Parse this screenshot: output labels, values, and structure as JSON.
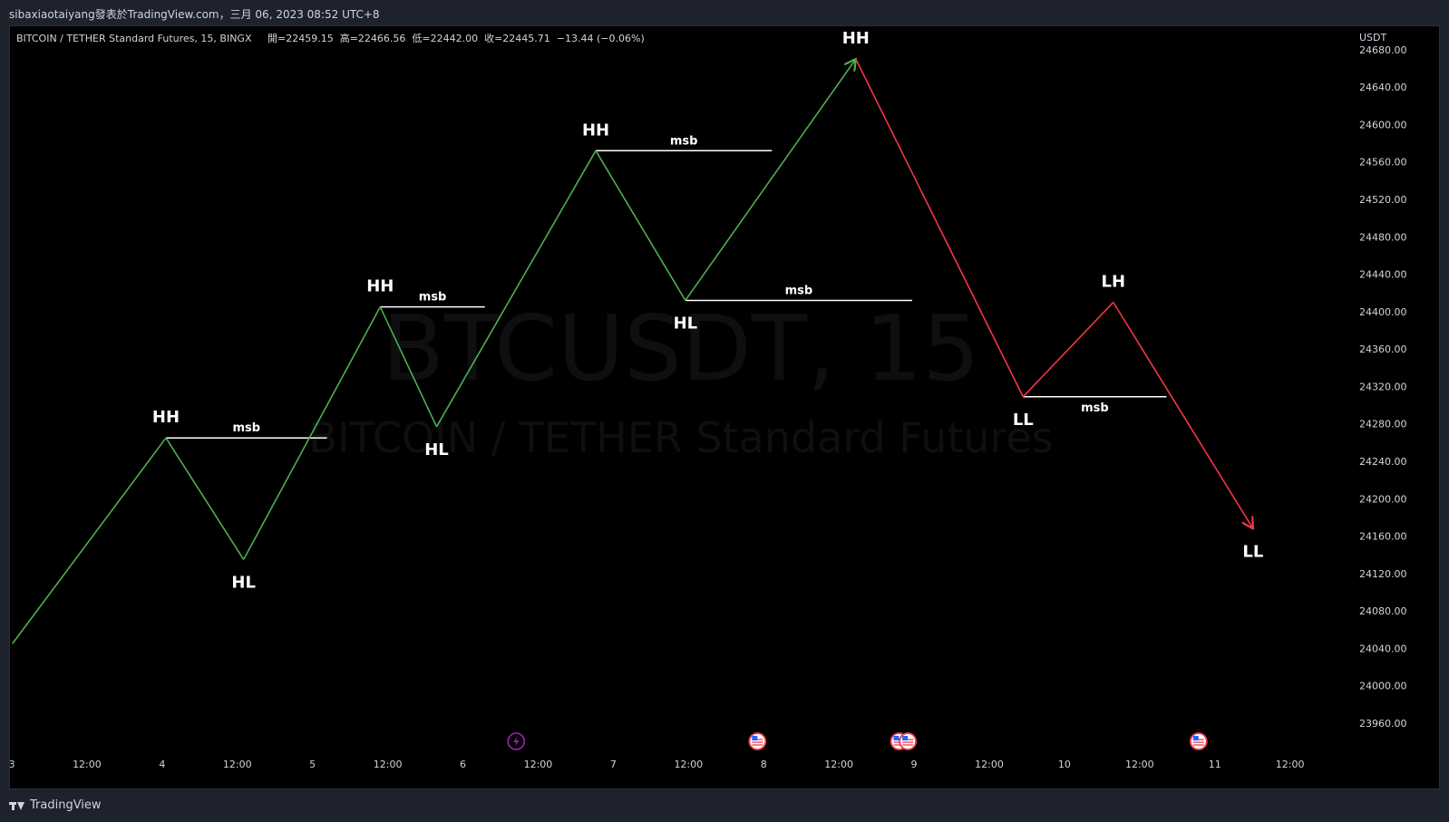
{
  "publisher_line": "sibaxiaotaiyang發表於TradingView.com，三月 06, 2023 08:52 UTC+8",
  "legend": {
    "symbol": "BITCOIN / TETHER Standard Futures, 15, BINGX",
    "ohlc": "開=22459.15  高=22466.56  低=22442.00  收=22445.71  −13.44 (−0.06%)"
  },
  "watermark": {
    "main": "BTCUSDT, 15",
    "sub": "BITCOIN / TETHER Standard Futures"
  },
  "footer": {
    "brand": "TradingView"
  },
  "colors": {
    "bull": "#4caf50",
    "bear": "#f23645",
    "msb_line": "#ffffff",
    "background": "#000000"
  },
  "chart_data": {
    "type": "line",
    "currency": "USDT",
    "ylim": [
      23930,
      24705
    ],
    "yticks": [
      23960,
      24000,
      24040,
      24080,
      24120,
      24160,
      24200,
      24240,
      24280,
      24320,
      24360,
      24400,
      24440,
      24480,
      24520,
      24560,
      24600,
      24640,
      24680
    ],
    "xticks": [
      {
        "label": "3",
        "t": 0
      },
      {
        "label": "12:00",
        "t": 12
      },
      {
        "label": "4",
        "t": 24
      },
      {
        "label": "12:00",
        "t": 36
      },
      {
        "label": "5",
        "t": 48
      },
      {
        "label": "12:00",
        "t": 60
      },
      {
        "label": "6",
        "t": 72
      },
      {
        "label": "12:00",
        "t": 84
      },
      {
        "label": "7",
        "t": 96
      },
      {
        "label": "12:00",
        "t": 108
      },
      {
        "label": "8",
        "t": 120
      },
      {
        "label": "12:00",
        "t": 132
      },
      {
        "label": "9",
        "t": 144
      },
      {
        "label": "12:00",
        "t": 156
      },
      {
        "label": "10",
        "t": 168
      },
      {
        "label": "12:00",
        "t": 180
      },
      {
        "label": "11",
        "t": 192
      },
      {
        "label": "12:00",
        "t": 204
      }
    ],
    "xlim": [
      0,
      213.6
    ],
    "swing_points": [
      {
        "t": 0.1,
        "price": 24045,
        "label": ""
      },
      {
        "t": 24.6,
        "price": 24265,
        "label": "HH"
      },
      {
        "t": 37.0,
        "price": 24135,
        "label": "HL"
      },
      {
        "t": 58.8,
        "price": 24405,
        "label": "HH"
      },
      {
        "t": 67.8,
        "price": 24277,
        "label": "HL"
      },
      {
        "t": 93.2,
        "price": 24572,
        "label": "HH"
      },
      {
        "t": 107.5,
        "price": 24412,
        "label": "HL"
      },
      {
        "t": 134.7,
        "price": 24670,
        "label": "HH"
      },
      {
        "t": 161.4,
        "price": 24309,
        "label": "LL"
      },
      {
        "t": 175.8,
        "price": 24410,
        "label": "LH"
      },
      {
        "t": 198.1,
        "price": 24168,
        "label": "LL"
      }
    ],
    "bull_segment_count": 7,
    "msb_lines": [
      {
        "label": "msb",
        "price": 24265,
        "t_start": 24.6,
        "t_end": 50.3
      },
      {
        "label": "msb",
        "price": 24405,
        "t_start": 58.8,
        "t_end": 75.5
      },
      {
        "label": "msb",
        "price": 24572,
        "t_start": 93.2,
        "t_end": 121.3
      },
      {
        "label": "msb",
        "price": 24412,
        "t_start": 107.5,
        "t_end": 143.7
      },
      {
        "label": "msb",
        "price": 24309,
        "t_start": 161.4,
        "t_end": 184.3
      }
    ],
    "events": [
      {
        "t": 80.5,
        "icon": "lightning-event-icon"
      },
      {
        "t": 119.0,
        "icon": "us-flag-event-icon"
      },
      {
        "t": 141.6,
        "icon": "us-flag-event-icon"
      },
      {
        "t": 143.0,
        "icon": "us-flag-event-icon"
      },
      {
        "t": 189.4,
        "icon": "us-flag-event-icon"
      }
    ]
  }
}
